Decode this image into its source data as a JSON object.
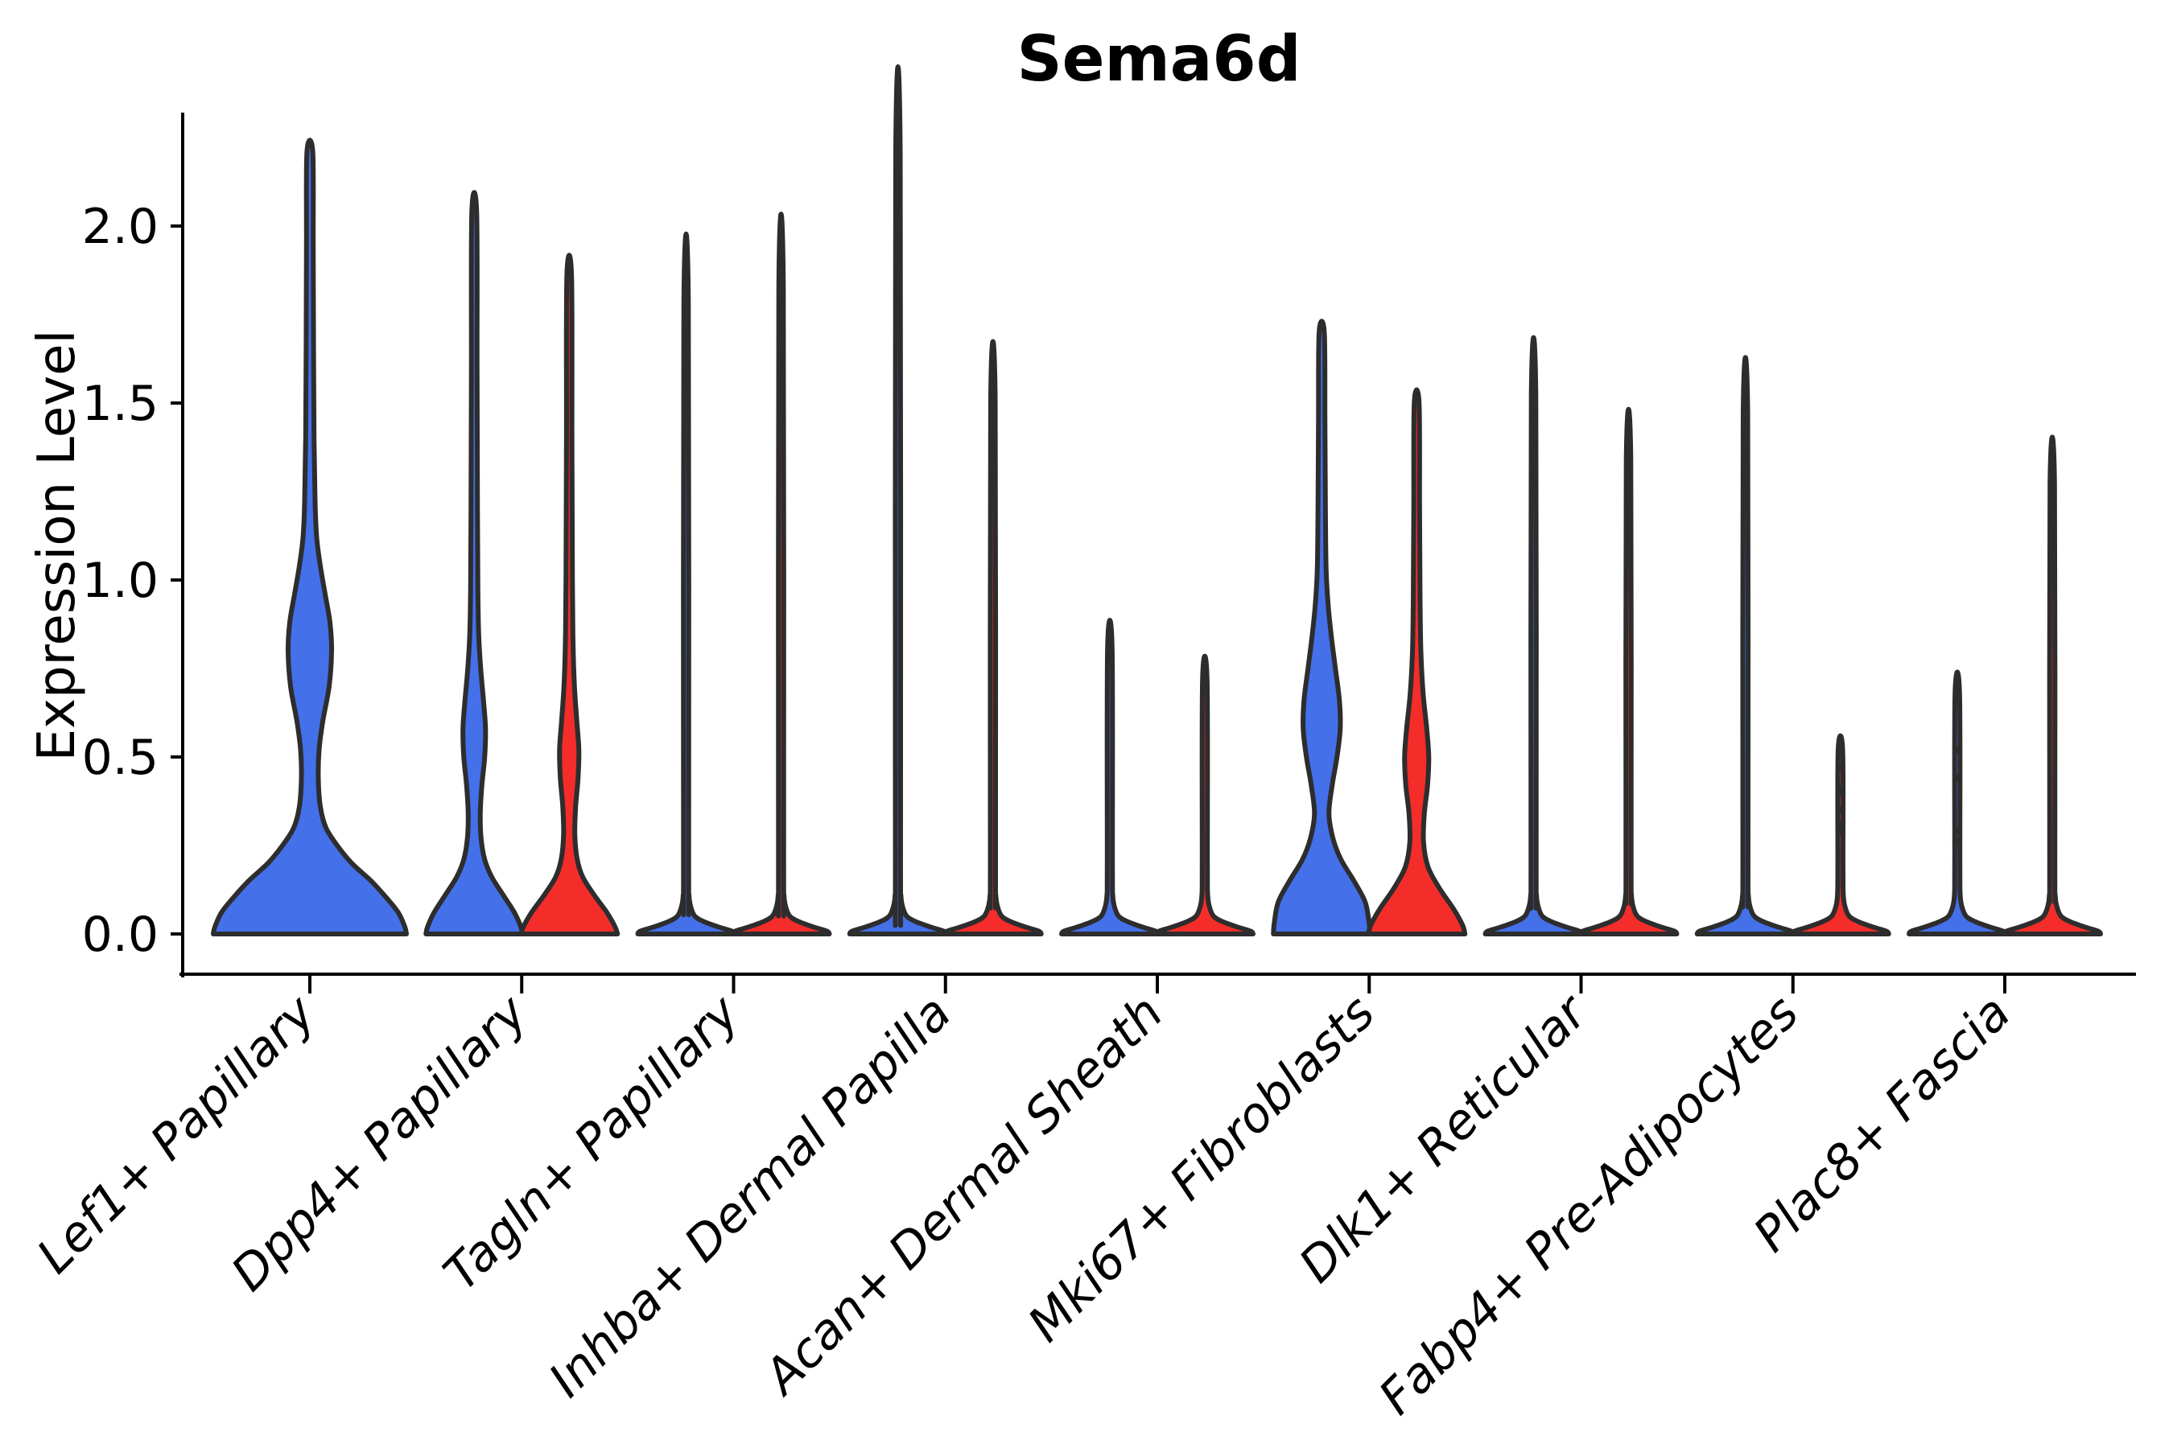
{
  "chart_data": {
    "type": "violin",
    "title": "Sema6d",
    "xlabel": "",
    "ylabel": "Expression Level",
    "ylim": [
      0,
      2.32
    ],
    "grid": false,
    "legend_position": "none",
    "y_ticks": [
      {
        "value": 0.0,
        "label": "0.0"
      },
      {
        "value": 0.5,
        "label": "0.5"
      },
      {
        "value": 1.0,
        "label": "1.0"
      },
      {
        "value": 1.5,
        "label": "1.5"
      },
      {
        "value": 2.0,
        "label": "2.0"
      }
    ],
    "categories": [
      "Lef1+ Papillary",
      "Dpp4+ Papillary",
      "Tagln+ Papillary",
      "Inhba+ Dermal Papilla",
      "Acan+ Dermal Sheath",
      "Mki67+ Fibroblasts",
      "Dlk1+ Reticular",
      "Fabp4+ Pre-Adipocytes",
      "Plac8+ Fascia"
    ],
    "group_colors": {
      "blue": "#4470EA",
      "red": "#F42D2A"
    },
    "outline_color": "#2d2d2d",
    "violins": [
      {
        "category_index": 0,
        "group": "blue",
        "offset": 0,
        "max_expression": 2.21,
        "profile": [
          [
            0,
            120
          ],
          [
            0.02,
            118
          ],
          [
            0.06,
            110
          ],
          [
            0.1,
            96
          ],
          [
            0.15,
            76
          ],
          [
            0.2,
            52
          ],
          [
            0.25,
            34
          ],
          [
            0.3,
            20
          ],
          [
            0.36,
            13
          ],
          [
            0.44,
            10.5
          ],
          [
            0.52,
            11.5
          ],
          [
            0.6,
            16
          ],
          [
            0.7,
            24
          ],
          [
            0.8,
            27
          ],
          [
            0.88,
            25
          ],
          [
            0.96,
            19
          ],
          [
            1.04,
            13
          ],
          [
            1.12,
            8.5
          ],
          [
            1.22,
            6.5
          ],
          [
            1.4,
            5.2
          ],
          [
            1.65,
            4.6
          ],
          [
            1.95,
            4.2
          ],
          [
            2.21,
            3.6
          ]
        ]
      },
      {
        "category_index": 1,
        "group": "blue",
        "offset": -59,
        "max_expression": 2.04,
        "profile": [
          [
            0,
            60
          ],
          [
            0.02,
            58
          ],
          [
            0.06,
            50
          ],
          [
            0.11,
            36
          ],
          [
            0.16,
            22
          ],
          [
            0.21,
            13
          ],
          [
            0.27,
            8.5
          ],
          [
            0.34,
            7.5
          ],
          [
            0.42,
            9.5
          ],
          [
            0.5,
            13
          ],
          [
            0.58,
            14
          ],
          [
            0.66,
            11.5
          ],
          [
            0.75,
            8
          ],
          [
            0.85,
            5.5
          ],
          [
            0.98,
            4.5
          ],
          [
            1.2,
            4
          ],
          [
            1.6,
            3.5
          ],
          [
            2.04,
            3
          ]
        ]
      },
      {
        "category_index": 1,
        "group": "red",
        "offset": 59,
        "max_expression": 1.86,
        "profile": [
          [
            0,
            60
          ],
          [
            0.02,
            57
          ],
          [
            0.06,
            47
          ],
          [
            0.11,
            31
          ],
          [
            0.16,
            17
          ],
          [
            0.21,
            10
          ],
          [
            0.28,
            7
          ],
          [
            0.36,
            8
          ],
          [
            0.44,
            11
          ],
          [
            0.52,
            12
          ],
          [
            0.6,
            9.5
          ],
          [
            0.7,
            6.5
          ],
          [
            0.82,
            4.8
          ],
          [
            1.0,
            4
          ],
          [
            1.4,
            3.4
          ],
          [
            1.86,
            2.9
          ]
        ]
      },
      {
        "category_index": 2,
        "group": "blue",
        "offset": -59,
        "max_expression": 1.78,
        "profile": [
          [
            0,
            60
          ],
          [
            0.008,
            57
          ],
          [
            0.02,
            40
          ],
          [
            0.035,
            22
          ],
          [
            0.05,
            11
          ],
          [
            0.075,
            6
          ],
          [
            0.11,
            3.6
          ],
          [
            0.2,
            3.2
          ],
          [
            1.78,
            2.8
          ]
        ]
      },
      {
        "category_index": 2,
        "group": "red",
        "offset": 59,
        "max_expression": 1.83,
        "profile": [
          [
            0,
            60
          ],
          [
            0.008,
            57
          ],
          [
            0.02,
            40
          ],
          [
            0.035,
            22
          ],
          [
            0.05,
            11
          ],
          [
            0.075,
            6
          ],
          [
            0.11,
            3.6
          ],
          [
            0.2,
            3.2
          ],
          [
            1.83,
            2.8
          ]
        ]
      },
      {
        "category_index": 3,
        "group": "blue",
        "offset": -59,
        "max_expression": 2.2,
        "profile": [
          [
            0,
            60
          ],
          [
            0.008,
            57
          ],
          [
            0.02,
            40
          ],
          [
            0.035,
            22
          ],
          [
            0.05,
            11
          ],
          [
            0.075,
            6
          ],
          [
            0.11,
            3.6
          ],
          [
            0.2,
            3.2
          ],
          [
            2.2,
            2.8
          ]
        ]
      },
      {
        "category_index": 3,
        "group": "red",
        "offset": 59,
        "max_expression": 1.51,
        "profile": [
          [
            0,
            60
          ],
          [
            0.008,
            57
          ],
          [
            0.02,
            40
          ],
          [
            0.035,
            22
          ],
          [
            0.05,
            11
          ],
          [
            0.075,
            6
          ],
          [
            0.11,
            3.6
          ],
          [
            0.2,
            3.2
          ],
          [
            1.51,
            2.8
          ]
        ]
      },
      {
        "category_index": 4,
        "group": "blue",
        "offset": -59,
        "max_expression": 0.81,
        "profile": [
          [
            0,
            60
          ],
          [
            0.008,
            57
          ],
          [
            0.02,
            40
          ],
          [
            0.035,
            22
          ],
          [
            0.05,
            11
          ],
          [
            0.075,
            6
          ],
          [
            0.11,
            3.6
          ],
          [
            0.2,
            3.2
          ],
          [
            0.81,
            2.8
          ]
        ]
      },
      {
        "category_index": 4,
        "group": "red",
        "offset": 59,
        "max_expression": 0.72,
        "profile": [
          [
            0,
            60
          ],
          [
            0.008,
            57
          ],
          [
            0.02,
            40
          ],
          [
            0.035,
            22
          ],
          [
            0.05,
            11
          ],
          [
            0.075,
            6
          ],
          [
            0.11,
            3.6
          ],
          [
            0.2,
            3.2
          ],
          [
            0.72,
            2.8
          ]
        ]
      },
      {
        "category_index": 5,
        "group": "blue",
        "offset": -59,
        "max_expression": 1.7,
        "profile": [
          [
            0,
            60
          ],
          [
            0.03,
            59
          ],
          [
            0.09,
            54
          ],
          [
            0.15,
            40
          ],
          [
            0.21,
            24
          ],
          [
            0.27,
            14
          ],
          [
            0.34,
            9
          ],
          [
            0.42,
            13
          ],
          [
            0.5,
            19
          ],
          [
            0.58,
            23
          ],
          [
            0.66,
            22
          ],
          [
            0.75,
            17
          ],
          [
            0.84,
            12
          ],
          [
            0.93,
            8
          ],
          [
            1.03,
            5.5
          ],
          [
            1.2,
            4.6
          ],
          [
            1.45,
            4
          ],
          [
            1.7,
            3.2
          ]
        ]
      },
      {
        "category_index": 5,
        "group": "red",
        "offset": 59,
        "max_expression": 1.5,
        "profile": [
          [
            0,
            60
          ],
          [
            0.025,
            57
          ],
          [
            0.07,
            46
          ],
          [
            0.13,
            28
          ],
          [
            0.19,
            14
          ],
          [
            0.26,
            8.5
          ],
          [
            0.34,
            9.5
          ],
          [
            0.42,
            13.5
          ],
          [
            0.5,
            15
          ],
          [
            0.58,
            12.5
          ],
          [
            0.68,
            8
          ],
          [
            0.8,
            5.2
          ],
          [
            0.95,
            4.2
          ],
          [
            1.2,
            3.6
          ],
          [
            1.5,
            3
          ]
        ]
      },
      {
        "category_index": 6,
        "group": "blue",
        "offset": -59,
        "max_expression": 1.52,
        "profile": [
          [
            0,
            60
          ],
          [
            0.008,
            57
          ],
          [
            0.02,
            40
          ],
          [
            0.035,
            22
          ],
          [
            0.05,
            11
          ],
          [
            0.075,
            6
          ],
          [
            0.11,
            3.6
          ],
          [
            0.2,
            3.2
          ],
          [
            1.52,
            2.8
          ]
        ]
      },
      {
        "category_index": 6,
        "group": "red",
        "offset": 59,
        "max_expression": 1.34,
        "profile": [
          [
            0,
            60
          ],
          [
            0.008,
            57
          ],
          [
            0.02,
            40
          ],
          [
            0.035,
            22
          ],
          [
            0.05,
            11
          ],
          [
            0.075,
            6
          ],
          [
            0.11,
            3.6
          ],
          [
            0.2,
            3.2
          ],
          [
            1.34,
            2.8
          ]
        ]
      },
      {
        "category_index": 7,
        "group": "blue",
        "offset": -59,
        "max_expression": 1.47,
        "profile": [
          [
            0,
            60
          ],
          [
            0.008,
            57
          ],
          [
            0.02,
            40
          ],
          [
            0.035,
            22
          ],
          [
            0.05,
            11
          ],
          [
            0.075,
            6
          ],
          [
            0.11,
            3.6
          ],
          [
            0.2,
            3.2
          ],
          [
            1.47,
            2.8
          ]
        ]
      },
      {
        "category_index": 7,
        "group": "red",
        "offset": 59,
        "max_expression": 0.52,
        "profile": [
          [
            0,
            60
          ],
          [
            0.008,
            57
          ],
          [
            0.02,
            40
          ],
          [
            0.035,
            22
          ],
          [
            0.05,
            11
          ],
          [
            0.075,
            6
          ],
          [
            0.11,
            3.6
          ],
          [
            0.2,
            3.2
          ],
          [
            0.52,
            2.8
          ]
        ]
      },
      {
        "category_index": 8,
        "group": "blue",
        "offset": -59,
        "max_expression": 0.68,
        "profile": [
          [
            0,
            60
          ],
          [
            0.008,
            57
          ],
          [
            0.02,
            40
          ],
          [
            0.035,
            22
          ],
          [
            0.05,
            11
          ],
          [
            0.075,
            6
          ],
          [
            0.11,
            3.6
          ],
          [
            0.2,
            3.2
          ],
          [
            0.68,
            2.8
          ]
        ]
      },
      {
        "category_index": 8,
        "group": "red",
        "offset": 59,
        "max_expression": 1.27,
        "profile": [
          [
            0,
            60
          ],
          [
            0.008,
            57
          ],
          [
            0.02,
            40
          ],
          [
            0.035,
            22
          ],
          [
            0.05,
            11
          ],
          [
            0.075,
            6
          ],
          [
            0.11,
            3.6
          ],
          [
            0.2,
            3.2
          ],
          [
            1.27,
            2.8
          ]
        ]
      }
    ],
    "jitter_dots": [
      {
        "category_index": 7,
        "group": "red",
        "offset": 59,
        "values": [
          0.47,
          0.41,
          0.4,
          0.35,
          0.31,
          0.29
        ]
      },
      {
        "category_index": 8,
        "group": "blue",
        "offset": -59,
        "values": [
          0.52,
          0.44,
          0.29,
          0.26
        ]
      }
    ]
  }
}
